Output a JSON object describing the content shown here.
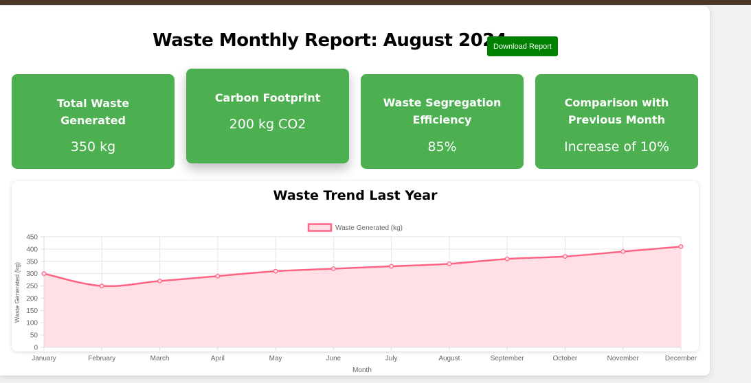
{
  "report": {
    "title": "Waste Monthly Report: August 2024",
    "download_label": "Download Report"
  },
  "cards": [
    {
      "title": "Total Waste Generated",
      "value": "350 kg"
    },
    {
      "title": "Carbon Footprint",
      "value": "200 kg CO2"
    },
    {
      "title": "Waste Segregation Efficiency",
      "value": "85%"
    },
    {
      "title": "Comparison with Previous Month",
      "value": "Increase of 10%"
    }
  ],
  "colors": {
    "card_green": "#4caf50",
    "button_green": "#008000",
    "series_line": "#ff6384",
    "series_fill": "#ffdde3"
  },
  "chart_data": {
    "type": "line",
    "title": "Waste Trend Last Year",
    "categories": [
      "January",
      "February",
      "March",
      "April",
      "May",
      "June",
      "July",
      "August",
      "September",
      "October",
      "November",
      "December"
    ],
    "series": [
      {
        "name": "Waste Generated (kg)",
        "values": [
          300,
          250,
          270,
          290,
          310,
          320,
          330,
          340,
          360,
          370,
          390,
          410
        ],
        "fill": true
      }
    ],
    "xlabel": "Month",
    "ylabel": "Waste Generated (kg)",
    "ylim": [
      0,
      450
    ],
    "yticks": [
      0,
      50,
      100,
      150,
      200,
      250,
      300,
      350,
      400,
      450
    ],
    "grid": true,
    "legend": "top-center"
  }
}
